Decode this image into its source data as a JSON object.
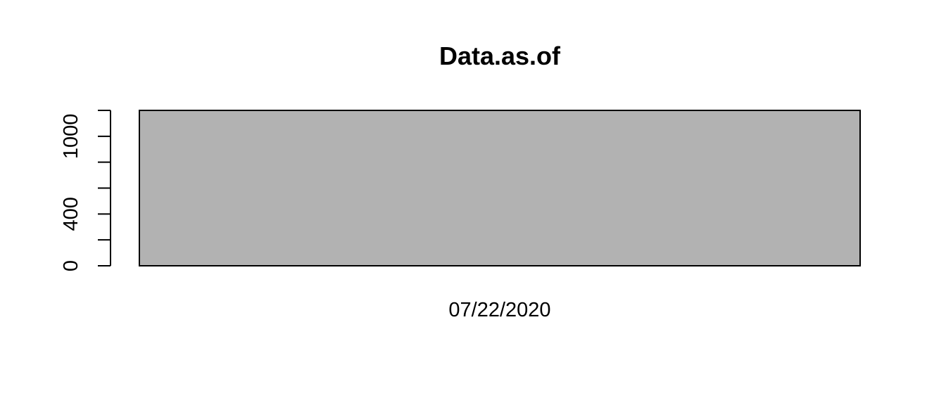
{
  "chart_data": {
    "type": "bar",
    "title": "Data.as.of",
    "xlabel": "",
    "ylabel": "",
    "categories": [
      "07/22/2020"
    ],
    "values": [
      1200
    ],
    "ylim": [
      0,
      1200
    ],
    "y_tick_values": [
      0,
      200,
      400,
      600,
      800,
      1000,
      1200
    ],
    "y_tick_labels": [
      "0",
      "",
      "400",
      "",
      "",
      "1000",
      ""
    ],
    "bar_color": "#b2b2b2",
    "grid": false,
    "legend": "none"
  }
}
